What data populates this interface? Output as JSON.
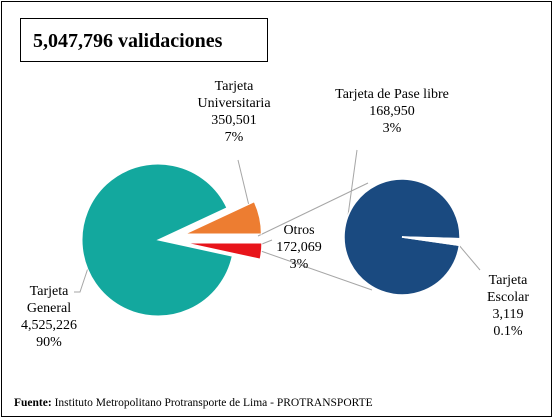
{
  "chart_data": {
    "type": "pie-of-pie",
    "title": "5,047,796 validaciones",
    "categories": [
      "Tarjeta General",
      "Tarjeta Universitaria",
      "Otros"
    ],
    "values": [
      4525226,
      350501,
      172069
    ],
    "value_labels": [
      "4,525,226",
      "350,501",
      "172,069"
    ],
    "percents": [
      90,
      7,
      3
    ],
    "percent_labels": [
      "90%",
      "7%",
      "3%"
    ],
    "colors": [
      "#13a89e",
      "#ed7d31",
      "#e8141a"
    ],
    "secondary": {
      "categories": [
        "Tarjeta de Pase libre",
        "Tarjeta Escolar"
      ],
      "values": [
        168950,
        3119
      ],
      "value_labels": [
        "168,950",
        "3,119"
      ],
      "percents": [
        3,
        0.1
      ],
      "percent_labels": [
        "3%",
        "0.1%"
      ],
      "colors": [
        "#1a4a80",
        "#ffffff"
      ]
    },
    "source": {
      "label": "Fuente:",
      "text": "Instituto Metropolitano Protransporte de Lima - PROTRANSPORTE"
    }
  }
}
